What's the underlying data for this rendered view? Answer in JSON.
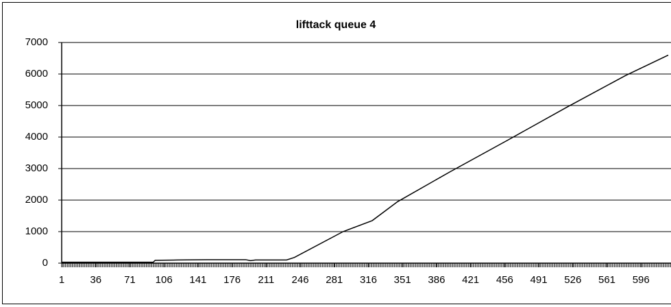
{
  "chart_data": {
    "type": "line",
    "title": "lifttack queue 4",
    "series": [
      {
        "color": "#000000",
        "x": [
          1,
          10,
          50,
          95,
          97,
          120,
          150,
          190,
          195,
          200,
          232,
          240,
          290,
          320,
          346,
          400,
          459,
          520,
          580,
          624
        ],
        "values": [
          30,
          30,
          30,
          30,
          90,
          100,
          110,
          110,
          80,
          100,
          100,
          180,
          1000,
          1350,
          1950,
          2900,
          3900,
          4950,
          5950,
          6600
        ]
      }
    ],
    "xlim": [
      1,
      624
    ],
    "xticks": [
      1,
      36,
      71,
      106,
      141,
      176,
      211,
      246,
      281,
      316,
      351,
      386,
      421,
      456,
      491,
      526,
      561,
      596
    ],
    "ylim": [
      0,
      7000
    ],
    "yticks": [
      0,
      1000,
      2000,
      3000,
      4000,
      5000,
      6000,
      7000
    ],
    "grid": true
  }
}
